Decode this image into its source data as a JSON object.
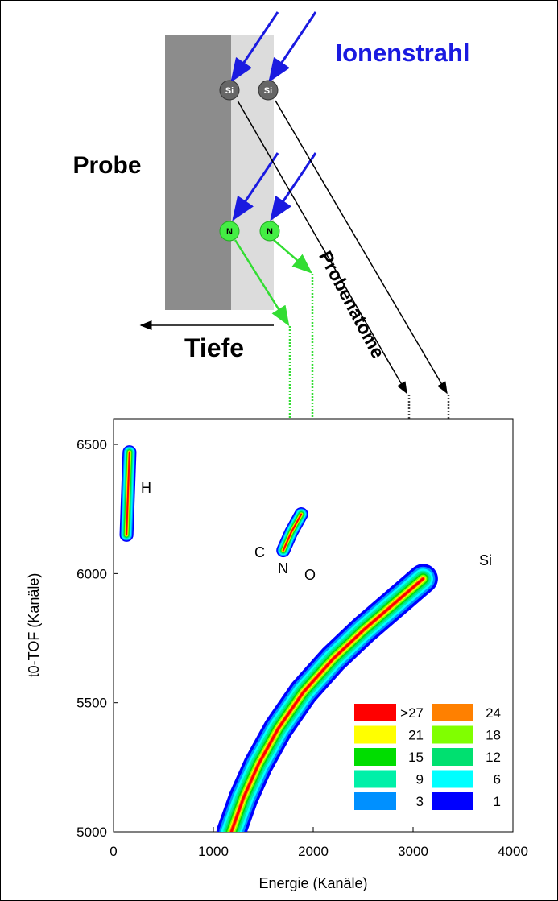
{
  "diagram": {
    "beam_label": "Ionenstrahl",
    "sample_label": "Probe",
    "depth_label": "Tiefe",
    "atoms_label": "Probenatome",
    "atoms": [
      "Si",
      "Si",
      "N",
      "N"
    ]
  },
  "chart_data": {
    "type": "scatter",
    "xlabel": "Energie (Kanäle)",
    "ylabel": "t0-TOF (Kanäle)",
    "xlim": [
      0,
      4000
    ],
    "xticks": [
      0,
      1000,
      2000,
      3000,
      4000
    ],
    "ylim": [
      5000,
      6600
    ],
    "yticks": [
      5000,
      5500,
      6000,
      6500
    ],
    "point_labels": [
      "H",
      "C",
      "N",
      "O",
      "Si"
    ],
    "series": [
      {
        "x": [
          1180,
          1300,
          1450,
          1650,
          1900,
          2200,
          2500,
          2800,
          3100
        ],
        "y": [
          5000,
          5130,
          5260,
          5400,
          5540,
          5670,
          5780,
          5880,
          5980
        ]
      },
      {
        "x": [
          130,
          160
        ],
        "y": [
          6150,
          6470
        ]
      },
      {
        "x": [
          1700,
          1780,
          1880
        ],
        "y": [
          6090,
          6160,
          6230
        ]
      }
    ],
    "color_scale": [
      {
        "value": 27,
        "label": ">27",
        "color": "#ff0000"
      },
      {
        "value": 24,
        "color": "#ff8000"
      },
      {
        "value": 21,
        "color": "#ffff00"
      },
      {
        "value": 18,
        "color": "#80ff00"
      },
      {
        "value": 15,
        "color": "#00dd00"
      },
      {
        "value": 12,
        "color": "#00e070"
      },
      {
        "value": 9,
        "color": "#00f0a8"
      },
      {
        "value": 6,
        "color": "#00ffff"
      },
      {
        "value": 3,
        "color": "#0090ff"
      },
      {
        "value": 1,
        "color": "#0000ff"
      }
    ]
  }
}
